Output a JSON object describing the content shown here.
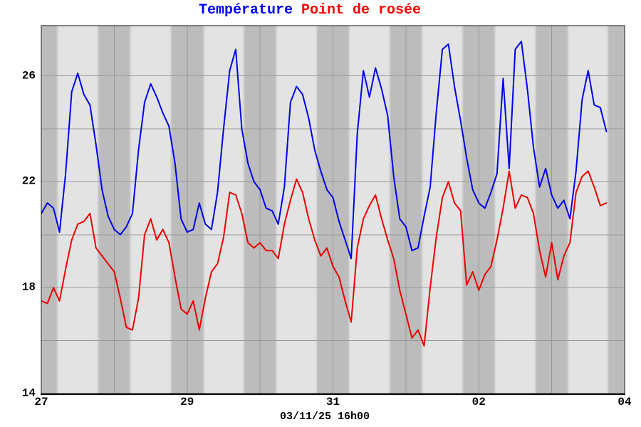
{
  "title": {
    "temperature_label": "Température",
    "dew_point_label": "Point de rosée"
  },
  "footer": {
    "timestamp": "03/11/25 16h00"
  },
  "colors": {
    "temperature_line": "#0000ee",
    "dew_point_line": "#ee0000",
    "temperature_title": "#0000ff",
    "dew_point_title": "#ff0000",
    "plot_background_day": "#e3e3e3",
    "plot_background_night": "#bcbcbc",
    "gridline": "#999999",
    "border": "#111111"
  },
  "chart_data": {
    "type": "line",
    "title": "Température Point de rosée",
    "xlabel": "",
    "ylabel": "",
    "x_unit": "hours from 27 00h00",
    "x_range_hours": [
      0,
      192
    ],
    "step_hours": 2,
    "ylim": [
      14,
      27.9
    ],
    "y_tick_labels": [
      "26",
      "22",
      "18",
      "14"
    ],
    "y_tick_values": [
      26,
      22,
      18,
      14
    ],
    "gridline_values": [
      16,
      18,
      20,
      22,
      24,
      26
    ],
    "x_tick_labels": [
      "27",
      "29",
      "31",
      "02",
      "04"
    ],
    "x_tick_hours": [
      0,
      48,
      96,
      144,
      192
    ],
    "midnight_gridlines_hours": [
      24,
      48,
      72,
      96,
      120,
      144,
      168
    ],
    "night_bands_hours": [
      [
        0,
        5.3
      ],
      [
        18.7,
        29.3
      ],
      [
        42.7,
        53.5
      ],
      [
        66.7,
        77.3
      ],
      [
        90.7,
        101.3
      ],
      [
        114.7,
        125.3
      ],
      [
        138.7,
        149.3
      ],
      [
        162.7,
        173.3
      ],
      [
        186.5,
        192
      ]
    ],
    "legend_position": "top-title",
    "grid": true,
    "series": [
      {
        "name": "Température",
        "color": "#0000ee",
        "values": [
          20.8,
          21.2,
          21.0,
          20.1,
          22.3,
          25.4,
          26.1,
          25.3,
          24.9,
          23.4,
          21.7,
          20.7,
          20.2,
          20.0,
          20.3,
          20.8,
          23.2,
          25.0,
          25.7,
          25.2,
          24.6,
          24.1,
          22.7,
          20.6,
          20.1,
          20.2,
          21.2,
          20.4,
          20.2,
          21.6,
          24.0,
          26.2,
          27.0,
          24.0,
          22.7,
          22.0,
          21.7,
          21.0,
          20.9,
          20.4,
          21.8,
          25.0,
          25.6,
          25.3,
          24.4,
          23.2,
          22.4,
          21.7,
          21.4,
          20.5,
          19.8,
          19.1,
          23.8,
          26.2,
          25.2,
          26.3,
          25.5,
          24.5,
          22.2,
          20.6,
          20.3,
          19.4,
          19.5,
          20.7,
          21.8,
          24.6,
          27.0,
          27.2,
          25.6,
          24.3,
          22.9,
          21.7,
          21.2,
          21.0,
          21.6,
          22.3,
          25.9,
          22.5,
          27.0,
          27.3,
          25.5,
          23.3,
          21.8,
          22.5,
          21.5,
          21.0,
          21.3,
          20.6,
          22.4,
          25.1,
          26.2,
          24.9,
          24.8,
          23.9
        ]
      },
      {
        "name": "Point de rosée",
        "color": "#ee0000",
        "values": [
          17.5,
          17.4,
          18.0,
          17.5,
          18.7,
          19.8,
          20.4,
          20.5,
          20.8,
          19.5,
          19.2,
          18.9,
          18.6,
          17.6,
          16.5,
          16.4,
          17.6,
          20.0,
          20.6,
          19.8,
          20.2,
          19.7,
          18.4,
          17.2,
          17.0,
          17.5,
          16.4,
          17.6,
          18.6,
          18.9,
          19.9,
          21.6,
          21.5,
          20.8,
          19.7,
          19.5,
          19.7,
          19.4,
          19.4,
          19.1,
          20.4,
          21.3,
          22.1,
          21.6,
          20.6,
          19.8,
          19.2,
          19.5,
          18.8,
          18.4,
          17.5,
          16.7,
          19.5,
          20.6,
          21.1,
          21.5,
          20.6,
          19.8,
          19.1,
          17.9,
          17.0,
          16.1,
          16.4,
          15.8,
          18.0,
          19.9,
          21.4,
          22.0,
          21.2,
          20.9,
          18.1,
          18.6,
          17.9,
          18.5,
          18.8,
          19.8,
          21.0,
          22.4,
          21.0,
          21.5,
          21.4,
          20.8,
          19.4,
          18.4,
          19.7,
          18.3,
          19.2,
          19.7,
          21.6,
          22.2,
          22.4,
          21.8,
          21.1,
          21.2
        ]
      }
    ]
  }
}
